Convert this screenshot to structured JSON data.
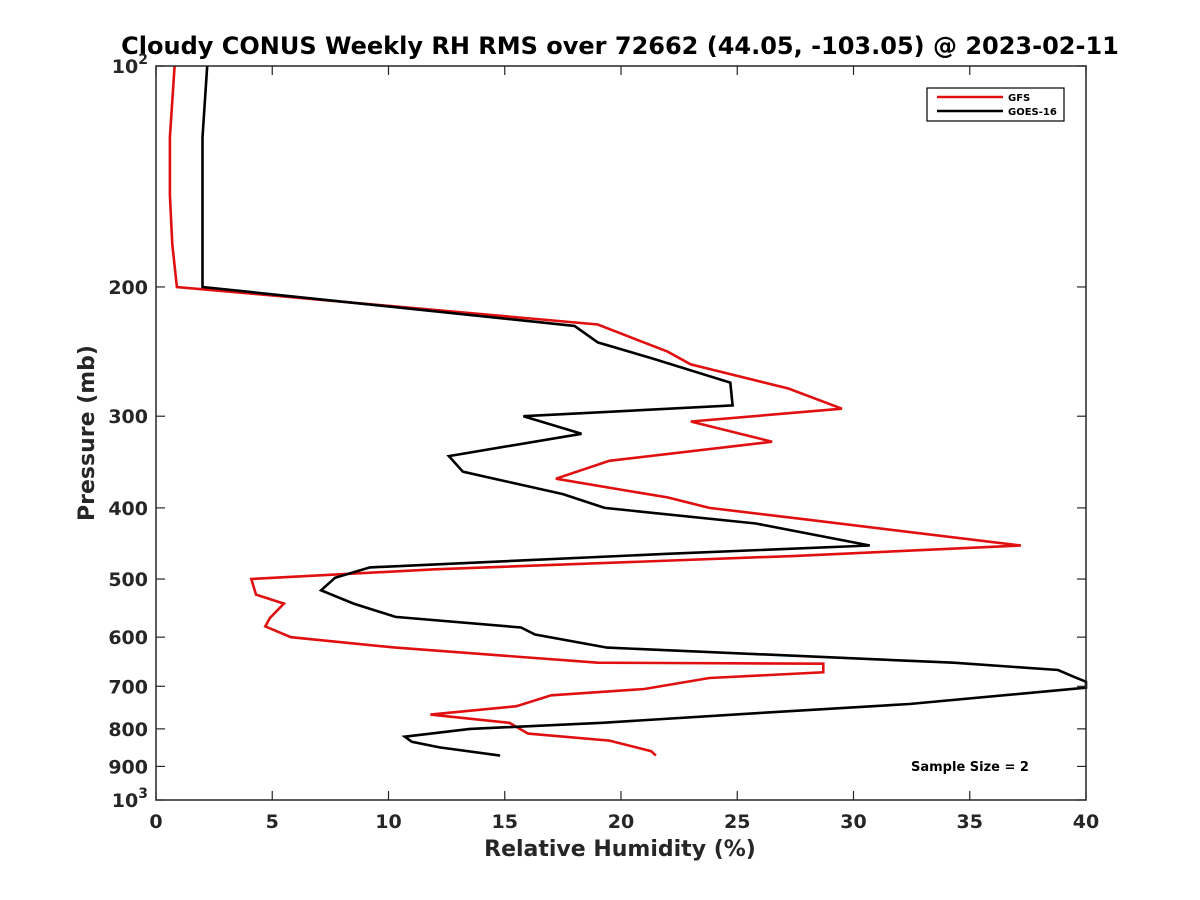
{
  "chart_data": {
    "type": "line",
    "title": "Cloudy CONUS Weekly RH RMS over 72662 (44.05, -103.05) @ 2023-02-11",
    "xlabel": "Relative Humidity (%)",
    "ylabel": "Pressure (mb)",
    "xlim": [
      0,
      40
    ],
    "ylim": [
      100,
      1000
    ],
    "y_scale": "log",
    "y_reversed": true,
    "x_ticks": [
      0,
      5,
      10,
      15,
      20,
      25,
      30,
      35,
      40
    ],
    "x_tick_labels": [
      "0",
      "5",
      "10",
      "15",
      "20",
      "25",
      "30",
      "35",
      "40"
    ],
    "y_ticks": [
      100,
      200,
      300,
      400,
      500,
      600,
      700,
      800,
      900,
      1000
    ],
    "y_tick_labels": [
      "10^2",
      "200",
      "300",
      "400",
      "500",
      "600",
      "700",
      "800",
      "900",
      "10^3"
    ],
    "grid": false,
    "legend_position": "top-right",
    "annotation": "Sample Size = 2",
    "series": [
      {
        "name": "GFS",
        "color": "#e01010",
        "points": [
          [
            0.8,
            100
          ],
          [
            0.6,
            125
          ],
          [
            0.6,
            150
          ],
          [
            0.7,
            175
          ],
          [
            0.9,
            200
          ],
          [
            19.0,
            225
          ],
          [
            22.0,
            245
          ],
          [
            23.0,
            255
          ],
          [
            27.2,
            275
          ],
          [
            29.5,
            293
          ],
          [
            23.0,
            305
          ],
          [
            26.5,
            325
          ],
          [
            19.5,
            345
          ],
          [
            17.2,
            365
          ],
          [
            20.5,
            380
          ],
          [
            22.0,
            387
          ],
          [
            23.8,
            400
          ],
          [
            28.0,
            415
          ],
          [
            37.2,
            450
          ],
          [
            27.5,
            465
          ],
          [
            12.0,
            485
          ],
          [
            4.1,
            500
          ],
          [
            4.3,
            525
          ],
          [
            5.5,
            540
          ],
          [
            4.9,
            565
          ],
          [
            4.7,
            580
          ],
          [
            5.8,
            600
          ],
          [
            10.3,
            620
          ],
          [
            19.0,
            650
          ],
          [
            28.7,
            652
          ],
          [
            28.7,
            670
          ],
          [
            23.8,
            682
          ],
          [
            21.0,
            706
          ],
          [
            17.0,
            720
          ],
          [
            15.5,
            745
          ],
          [
            11.8,
            765
          ],
          [
            15.2,
            785
          ],
          [
            16.0,
            812
          ],
          [
            19.5,
            830
          ],
          [
            21.3,
            858
          ],
          [
            21.5,
            870
          ]
        ]
      },
      {
        "name": "GOES-16",
        "color": "#000000",
        "points": [
          [
            2.2,
            100
          ],
          [
            2.0,
            125
          ],
          [
            2.0,
            150
          ],
          [
            2.0,
            175
          ],
          [
            2.0,
            200
          ],
          [
            18.0,
            226
          ],
          [
            19.0,
            238
          ],
          [
            21.3,
            250
          ],
          [
            24.7,
            270
          ],
          [
            24.8,
            290
          ],
          [
            15.8,
            300
          ],
          [
            18.3,
            317
          ],
          [
            12.6,
            340
          ],
          [
            13.2,
            357
          ],
          [
            17.5,
            383
          ],
          [
            19.3,
            400
          ],
          [
            25.8,
            420
          ],
          [
            30.7,
            450
          ],
          [
            22.0,
            462
          ],
          [
            9.2,
            482
          ],
          [
            7.7,
            498
          ],
          [
            7.1,
            518
          ],
          [
            8.5,
            540
          ],
          [
            10.3,
            563
          ],
          [
            15.7,
            582
          ],
          [
            16.3,
            595
          ],
          [
            19.4,
            620
          ],
          [
            34.3,
            650
          ],
          [
            38.8,
            665
          ],
          [
            39.5,
            680
          ],
          [
            40.0,
            690
          ],
          [
            40.0,
            703
          ],
          [
            32.4,
            740
          ],
          [
            26.0,
            761
          ],
          [
            19.2,
            785
          ],
          [
            13.5,
            800
          ],
          [
            10.7,
            820
          ],
          [
            11.0,
            833
          ],
          [
            12.2,
            848
          ],
          [
            14.8,
            870
          ]
        ]
      }
    ]
  }
}
